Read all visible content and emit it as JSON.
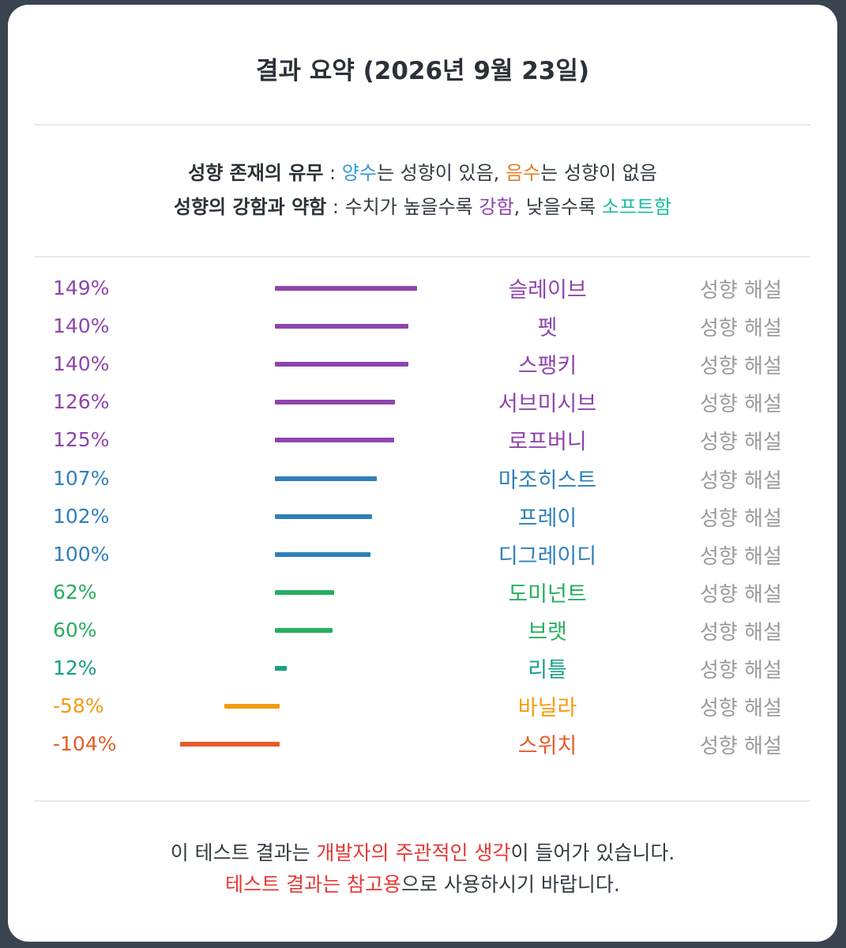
{
  "header": {
    "title": "결과 요약 (2026년 9월 23일)"
  },
  "legend": {
    "line1": {
      "label": "성향 존재의 유무",
      "sep": " : ",
      "positive": "양수",
      "mid": "는 성향이 있음, ",
      "negative": "음수",
      "end": "는 성향이 없음"
    },
    "line2": {
      "label": "성향의 강함과 약함",
      "sep": " : 수치가 높을수록 ",
      "strong": "강함",
      "mid": ", 낮을수록 ",
      "soft": "소프트함"
    }
  },
  "explain_label": "성향 해설",
  "chart_data": {
    "type": "bar",
    "orientation": "horizontal",
    "unit": "%",
    "categories": [
      "슬레이브",
      "펫",
      "스팽키",
      "서브미시브",
      "로프버니",
      "마조히스트",
      "프레이",
      "디그레이디",
      "도미넌트",
      "브랫",
      "리틀",
      "바닐라",
      "스위치"
    ],
    "values": [
      149,
      140,
      140,
      126,
      125,
      107,
      102,
      100,
      62,
      60,
      12,
      -58,
      -104
    ],
    "labels": [
      "149%",
      "140%",
      "140%",
      "126%",
      "125%",
      "107%",
      "102%",
      "100%",
      "62%",
      "60%",
      "12%",
      "-58%",
      "-104%"
    ],
    "colors": [
      "#8e44ad",
      "#8e44ad",
      "#8e44ad",
      "#8e44ad",
      "#8e44ad",
      "#2e80ba",
      "#2e80ba",
      "#2e80ba",
      "#27ae60",
      "#27ae60",
      "#16a085",
      "#f39c12",
      "#e65c28"
    ]
  },
  "footer": {
    "line1": {
      "a": "이 테스트 결과는 ",
      "b": "개발자의 주관적인 생각",
      "c": "이 들어가 있습니다."
    },
    "line2": {
      "a": "테스트 결과는 참고용",
      "b": "으로 사용하시기 바랍니다."
    }
  },
  "colors": {
    "positive": "#3498db",
    "negative": "#e67e22",
    "strong": "#8e44ad",
    "soft": "#1abc9c",
    "warning": "#e53935"
  }
}
